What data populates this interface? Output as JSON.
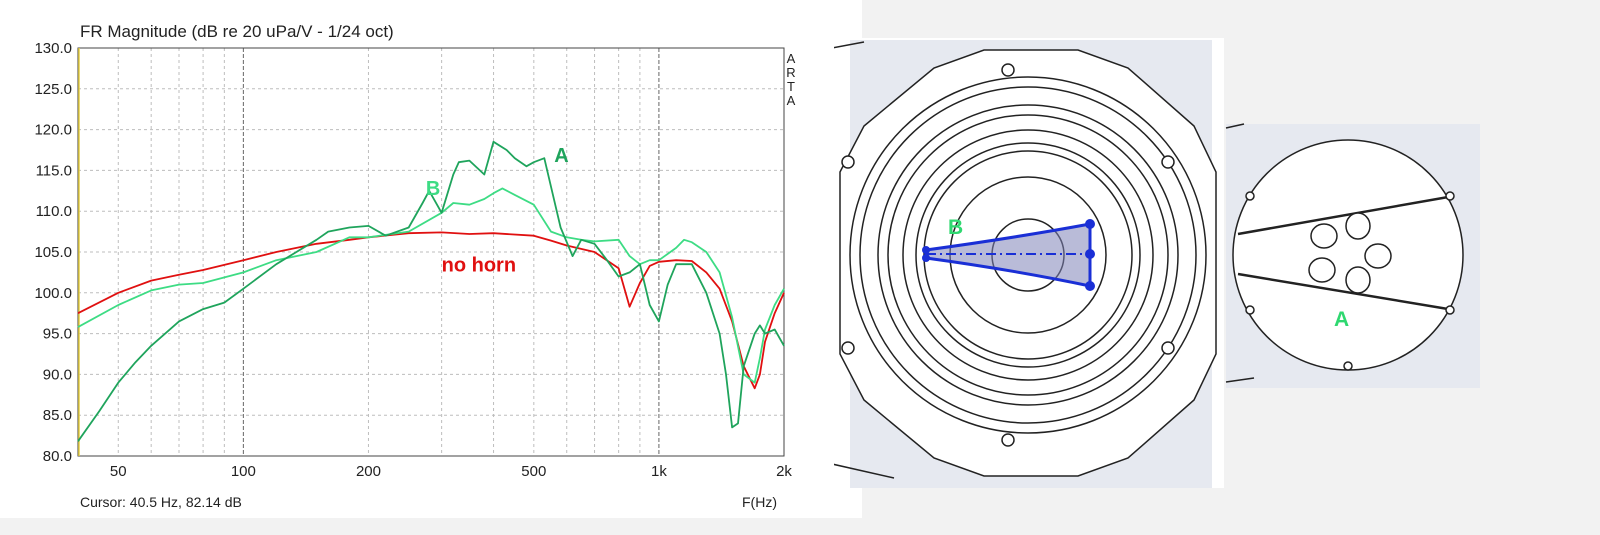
{
  "chart_data": {
    "type": "line",
    "title": "FR Magnitude (dB re 20 uPa/V - 1/24 oct)",
    "side_label": "ARTA",
    "xlabel": "F(Hz)",
    "x_scale": "log",
    "xlim": [
      40,
      2000
    ],
    "ylim": [
      80,
      130
    ],
    "grid": true,
    "x_ticks": [
      {
        "value": 50,
        "label": "50"
      },
      {
        "value": 100,
        "label": "100"
      },
      {
        "value": 200,
        "label": "200"
      },
      {
        "value": 500,
        "label": "500"
      },
      {
        "value": 1000,
        "label": "1k"
      },
      {
        "value": 2000,
        "label": "2k"
      }
    ],
    "y_ticks": [
      "80.0",
      "85.0",
      "90.0",
      "95.0",
      "100.0",
      "105.0",
      "110.0",
      "115.0",
      "120.0",
      "125.0",
      "130.0"
    ],
    "cursor_readout": "Cursor: 40.5 Hz, 82.14 dB",
    "series": [
      {
        "name": "no horn",
        "color": "#e01010",
        "x": [
          40,
          50,
          60,
          70,
          80,
          100,
          120,
          150,
          180,
          200,
          250,
          300,
          350,
          400,
          500,
          550,
          600,
          700,
          800,
          850,
          900,
          950,
          1000,
          1100,
          1200,
          1300,
          1400,
          1500,
          1600,
          1700,
          1750,
          1800,
          1900,
          2000
        ],
        "y": [
          97.5,
          100.0,
          101.5,
          102.2,
          102.8,
          104.0,
          105.0,
          106.0,
          106.5,
          106.8,
          107.3,
          107.4,
          107.2,
          107.3,
          107.0,
          106.4,
          105.8,
          105.0,
          103.0,
          98.3,
          101.2,
          103.3,
          103.8,
          104.0,
          103.9,
          102.5,
          100.5,
          96.5,
          91.0,
          88.3,
          90.0,
          94.0,
          97.5,
          100.0
        ]
      },
      {
        "name": "B",
        "color": "#3ddc84",
        "x": [
          40,
          50,
          60,
          70,
          80,
          100,
          120,
          150,
          180,
          200,
          250,
          300,
          320,
          350,
          380,
          400,
          420,
          450,
          500,
          550,
          600,
          650,
          700,
          800,
          850,
          900,
          950,
          1000,
          1100,
          1150,
          1200,
          1300,
          1400,
          1500,
          1600,
          1700,
          1750,
          1800,
          1900,
          2000
        ],
        "y": [
          95.8,
          98.5,
          100.3,
          101.0,
          101.2,
          102.5,
          104.0,
          105.0,
          106.8,
          106.8,
          107.5,
          109.8,
          111.0,
          110.8,
          111.5,
          112.2,
          112.8,
          112.0,
          110.8,
          107.5,
          106.8,
          106.5,
          106.3,
          106.5,
          104.5,
          103.5,
          104.0,
          104.0,
          105.5,
          106.5,
          106.2,
          105.0,
          102.5,
          97.0,
          90.0,
          89.0,
          92.0,
          95.5,
          98.5,
          100.5
        ]
      },
      {
        "name": "A",
        "color": "#1fa45c",
        "x": [
          40,
          45,
          50,
          55,
          60,
          70,
          80,
          90,
          100,
          120,
          150,
          160,
          180,
          200,
          220,
          250,
          270,
          280,
          300,
          320,
          330,
          350,
          380,
          400,
          430,
          450,
          480,
          500,
          530,
          550,
          580,
          620,
          650,
          700,
          750,
          800,
          850,
          900,
          950,
          1000,
          1050,
          1100,
          1200,
          1300,
          1400,
          1450,
          1500,
          1550,
          1600,
          1700,
          1750,
          1800,
          1900,
          2000
        ],
        "y": [
          81.8,
          85.5,
          89.0,
          91.5,
          93.5,
          96.5,
          98.0,
          98.8,
          100.5,
          103.5,
          106.5,
          107.5,
          108.0,
          108.2,
          107.0,
          108.0,
          111.0,
          112.5,
          109.8,
          114.5,
          116.0,
          116.2,
          114.5,
          118.5,
          117.5,
          116.5,
          115.5,
          116.0,
          116.5,
          113.0,
          108.0,
          104.5,
          106.5,
          106.0,
          104.0,
          102.0,
          102.5,
          103.5,
          98.5,
          96.5,
          101.0,
          103.5,
          103.5,
          100.0,
          95.0,
          90.0,
          83.5,
          84.0,
          91.0,
          95.0,
          96.0,
          95.0,
          95.5,
          93.5
        ]
      }
    ],
    "annotations": [
      {
        "text": "A",
        "color": "#1fa45c",
        "x": 560,
        "y": 116.0
      },
      {
        "text": "B",
        "color": "#3ddc84",
        "x": 275,
        "y": 112.0
      },
      {
        "text": "no horn",
        "color": "#e01010",
        "x": 300,
        "y": 102.6
      }
    ]
  },
  "drawings": {
    "left_label": "B",
    "right_label": "A",
    "label_color": "#2fd870",
    "outline_color": "#222222",
    "accent_color": "#1a2fd6",
    "background": "#e8ebf2"
  }
}
